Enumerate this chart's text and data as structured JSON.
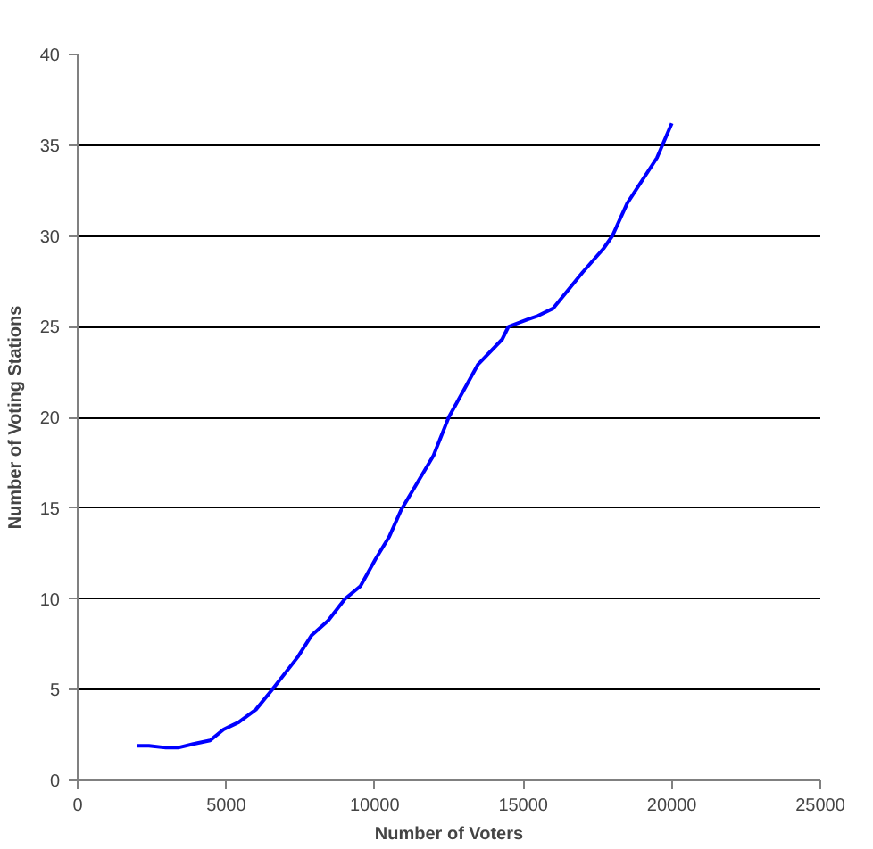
{
  "chart_data": {
    "type": "line",
    "xlabel": "Number of Voters",
    "ylabel": "Number of Voting Stations",
    "x": [
      2000,
      2400,
      2970,
      3380,
      3890,
      4460,
      4910,
      5420,
      6000,
      6550,
      7410,
      7880,
      8430,
      9000,
      9520,
      10030,
      10480,
      10890,
      11980,
      12490,
      13470,
      14290,
      14500,
      15150,
      15500,
      16000,
      17000,
      17700,
      18000,
      18500,
      19500,
      20000
    ],
    "series": [
      {
        "color": "#0000ff",
        "values": [
          1.9,
          1.9,
          1.8,
          1.8,
          2.0,
          2.2,
          2.8,
          3.2,
          3.9,
          5.0,
          6.8,
          8.0,
          8.8,
          10.0,
          10.7,
          12.2,
          13.4,
          14.9,
          17.9,
          20.0,
          22.9,
          24.3,
          25.0,
          25.4,
          25.6,
          26.0,
          28.0,
          29.3,
          30.0,
          31.8,
          34.3,
          36.2
        ]
      }
    ],
    "xlim": [
      0,
      25000
    ],
    "xticks": [
      0,
      5000,
      10000,
      15000,
      20000,
      25000
    ],
    "ylim": [
      0,
      40
    ],
    "yticks": [
      0,
      5,
      10,
      15,
      20,
      25,
      30,
      35,
      40
    ],
    "grid": "y",
    "marker": "none",
    "line_style": "solid"
  }
}
